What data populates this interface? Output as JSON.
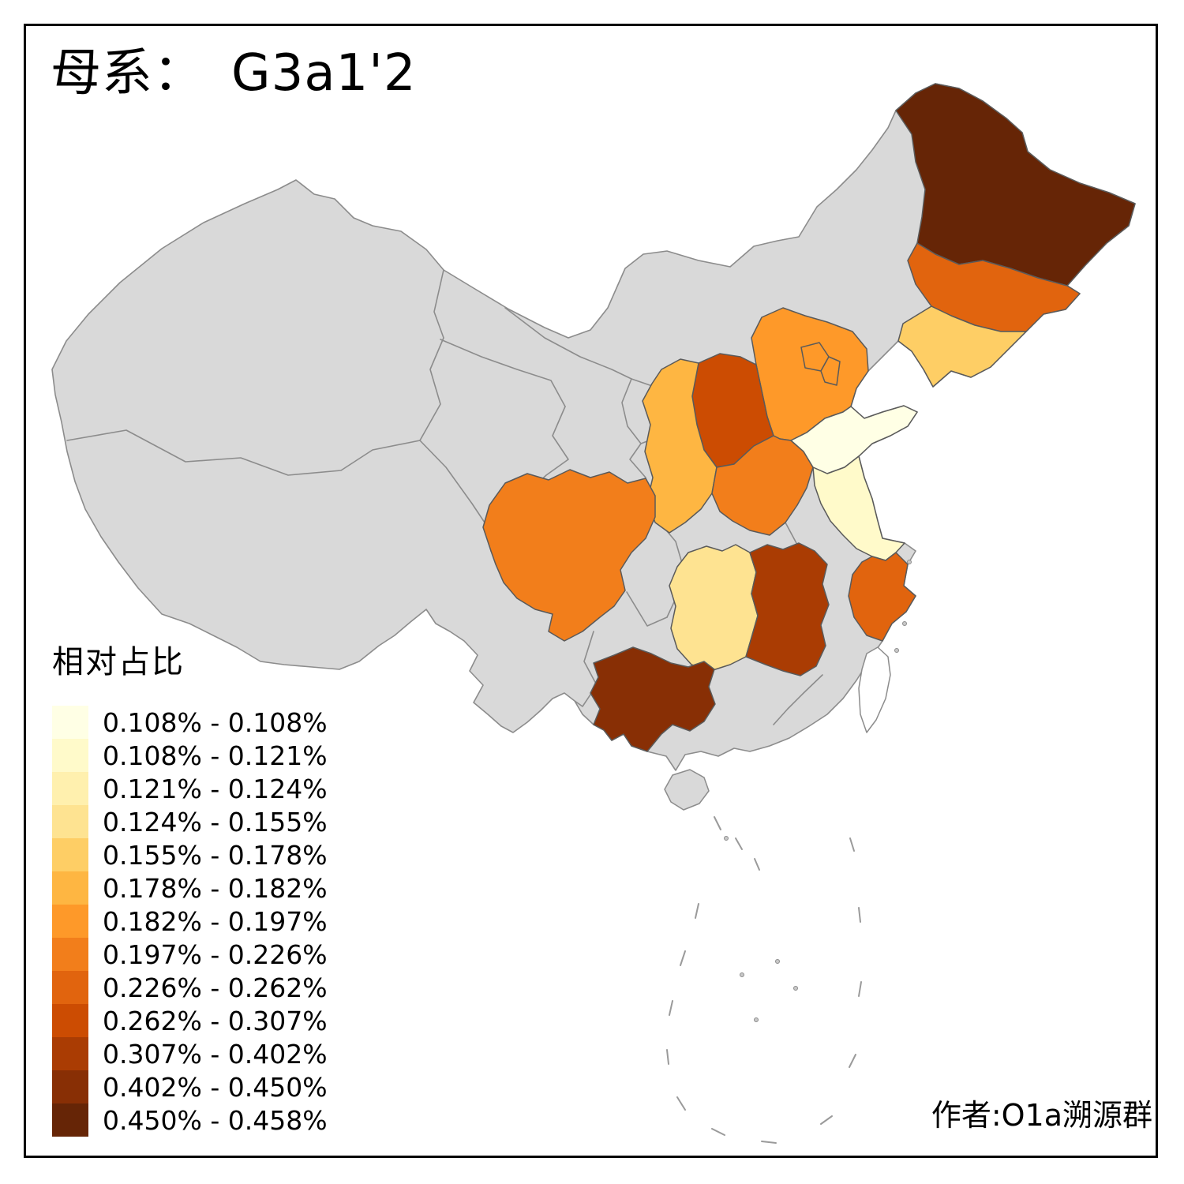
{
  "title": {
    "prefix": "母系：",
    "haplogroup": "G3a1'2"
  },
  "legend": {
    "title": "相对占比",
    "classes": [
      {
        "label": "0.108% - 0.108%",
        "color": "#FFFFE5"
      },
      {
        "label": "0.108% - 0.121%",
        "color": "#FFFACA"
      },
      {
        "label": "0.121% - 0.124%",
        "color": "#FFF0AE"
      },
      {
        "label": "0.124% - 0.155%",
        "color": "#FEE391"
      },
      {
        "label": "0.155% - 0.178%",
        "color": "#FECE65"
      },
      {
        "label": "0.178% - 0.182%",
        "color": "#FEB642"
      },
      {
        "label": "0.182% - 0.197%",
        "color": "#FE9929"
      },
      {
        "label": "0.197% - 0.226%",
        "color": "#F27E1B"
      },
      {
        "label": "0.226% - 0.262%",
        "color": "#E1640E"
      },
      {
        "label": "0.262% - 0.307%",
        "color": "#CC4C02"
      },
      {
        "label": "0.307% - 0.402%",
        "color": "#AA3C03"
      },
      {
        "label": "0.402% - 0.450%",
        "color": "#882F05"
      },
      {
        "label": "0.450% - 0.458%",
        "color": "#662506"
      }
    ]
  },
  "attribution": "作者:O1a溯源群",
  "map": {
    "background": "#FFFFFF",
    "no_data_color": "#D9D9D9",
    "border_color": "#8C8C8C",
    "taiwan_fill": "#FFFFFF",
    "provinces": {
      "heilongjiang": {
        "color": "#662506",
        "legend_class": 13,
        "range": "0.450% - 0.458%"
      },
      "guangxi": {
        "color": "#882F05",
        "legend_class": 12,
        "range": "0.402% - 0.450%"
      },
      "jiangxi": {
        "color": "#AA3C03",
        "legend_class": 11,
        "range": "0.307% - 0.402%"
      },
      "shanxi": {
        "color": "#CC4C02",
        "legend_class": 10,
        "range": "0.262% - 0.307%"
      },
      "jilin": {
        "color": "#E1640E",
        "legend_class": 9,
        "range": "0.226% - 0.262%"
      },
      "zhejiang": {
        "color": "#E1640E",
        "legend_class": 9,
        "range": "0.226% - 0.262%"
      },
      "sichuan": {
        "color": "#F27E1B",
        "legend_class": 8,
        "range": "0.197% - 0.226%"
      },
      "henan": {
        "color": "#F27E1B",
        "legend_class": 8,
        "range": "0.197% - 0.226%"
      },
      "hebei": {
        "color": "#FE9929",
        "legend_class": 7,
        "range": "0.182% - 0.197%"
      },
      "beijing": {
        "color": "#FE9929",
        "legend_class": 7,
        "range": "0.182% - 0.197%"
      },
      "tianjin": {
        "color": "#FE9929",
        "legend_class": 7,
        "range": "0.182% - 0.197%"
      },
      "shaanxi": {
        "color": "#FEB642",
        "legend_class": 6,
        "range": "0.178% - 0.182%"
      },
      "liaoning": {
        "color": "#FECE65",
        "legend_class": 5,
        "range": "0.155% - 0.178%"
      },
      "hunan": {
        "color": "#FEE391",
        "legend_class": 4,
        "range": "0.124% - 0.155%"
      },
      "jiangsu": {
        "color": "#FFFACA",
        "legend_class": 2,
        "range": "0.108% - 0.121%"
      },
      "shandong": {
        "color": "#FFFFE5",
        "legend_class": 1,
        "range": "0.108% - 0.108%"
      }
    }
  }
}
